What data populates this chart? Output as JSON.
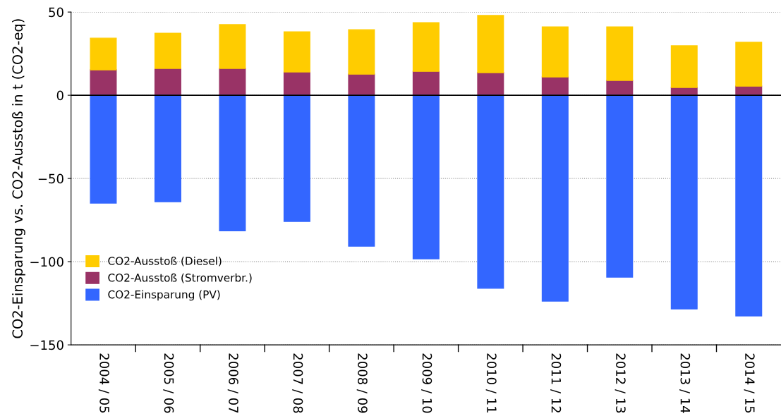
{
  "chart_data": {
    "type": "bar",
    "stacked": true,
    "ylabel": "CO2-Einsparung vs. CO2-Ausstoß in t (CO2-eq)",
    "categories": [
      "2004 / 05",
      "2005 / 06",
      "2006 / 07",
      "2007 / 08",
      "2008 / 09",
      "2009 / 10",
      "2010 / 11",
      "2011 / 12",
      "2012 / 13",
      "2013 / 14",
      "2014 / 15"
    ],
    "series": [
      {
        "name": "CO2-Ausstoß (Stromverbr.)",
        "color": "#993366",
        "values": [
          15.3,
          16.1,
          16.1,
          14,
          12.7,
          14.4,
          13.6,
          11,
          8.9,
          4.7,
          5.5
        ]
      },
      {
        "name": "CO2-Ausstoß (Diesel)",
        "color": "#ffcc00",
        "values": [
          19,
          21.2,
          26.3,
          24.1,
          26.7,
          29.2,
          34.3,
          30.1,
          32.2,
          25,
          26.3
        ]
      },
      {
        "name": "CO2-Einsparung (PV)",
        "color": "#3366ff",
        "values": [
          -64.8,
          -64,
          -81.4,
          -75.8,
          -90.7,
          -98.3,
          -116,
          -123.7,
          -109.3,
          -128.4,
          -132.6
        ]
      }
    ],
    "ylim": [
      -150,
      50
    ],
    "yticks": [
      {
        "value": -150,
        "label": "−150"
      },
      {
        "value": -100,
        "label": "−100"
      },
      {
        "value": -50,
        "label": "−50"
      },
      0,
      50
    ],
    "grid": "y",
    "legend": "bottom left"
  }
}
